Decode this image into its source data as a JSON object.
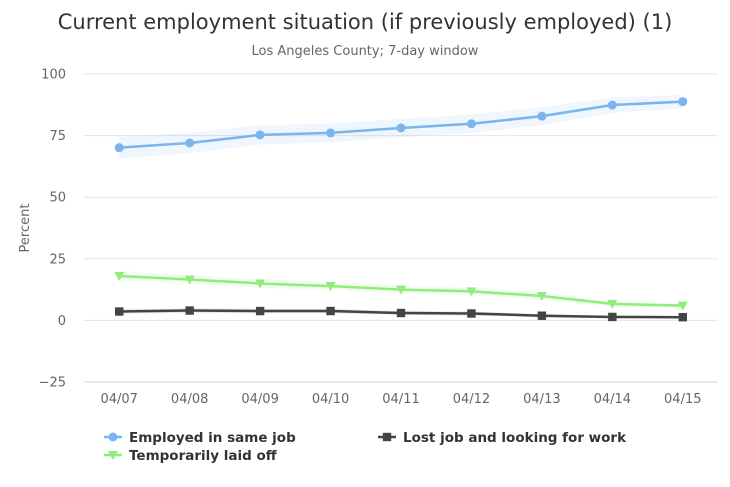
{
  "chart_data": {
    "type": "line",
    "title": "Current employment situation (if previously employed) (1)",
    "subtitle": "Los Angeles County; 7-day window",
    "ylabel": "Percent",
    "xlabel": "",
    "categories": [
      "04/07",
      "04/08",
      "04/09",
      "04/10",
      "04/11",
      "04/12",
      "04/13",
      "04/14",
      "04/15"
    ],
    "ylim": [
      -25,
      100
    ],
    "yticks": [
      100,
      75,
      50,
      25,
      0,
      -25
    ],
    "ytick_labels": [
      "100",
      "75",
      "50",
      "25",
      "0",
      "−25"
    ],
    "grid": true,
    "legend_position": "bottom",
    "series": [
      {
        "name": "Employed in same job",
        "color": "#7cb5ec",
        "marker": "circle",
        "values": [
          70.1,
          72.0,
          75.3,
          76.1,
          78.1,
          79.8,
          82.9,
          87.4,
          88.8
        ],
        "band_lower": [
          65.7,
          67.9,
          71.4,
          72.3,
          74.4,
          76.1,
          79.2,
          84.3,
          86.1
        ],
        "band_upper": [
          74.5,
          76.1,
          79.2,
          79.9,
          81.8,
          83.5,
          86.6,
          90.5,
          91.5
        ]
      },
      {
        "name": "Temporarily laid off",
        "color": "#90ed7d",
        "marker": "triangle-down",
        "values": [
          18.0,
          16.6,
          15.0,
          13.9,
          12.5,
          11.8,
          9.9,
          6.7,
          6.0
        ],
        "band_lower": [
          16.0,
          14.7,
          13.2,
          12.2,
          10.9,
          10.3,
          8.5,
          5.6,
          5.0
        ],
        "band_upper": [
          20.0,
          18.5,
          16.8,
          15.6,
          14.1,
          13.3,
          11.3,
          7.8,
          7.0
        ]
      },
      {
        "name": "Lost job and looking for work",
        "color": "#434348",
        "marker": "square",
        "values": [
          3.6,
          4.0,
          3.8,
          3.8,
          3.0,
          2.8,
          1.9,
          1.4,
          1.3
        ],
        "band_lower": [
          2.7,
          3.1,
          2.9,
          2.9,
          2.2,
          2.0,
          1.3,
          0.9,
          0.8
        ],
        "band_upper": [
          4.5,
          4.9,
          4.7,
          4.7,
          3.8,
          3.6,
          2.5,
          1.9,
          1.8
        ]
      }
    ]
  }
}
